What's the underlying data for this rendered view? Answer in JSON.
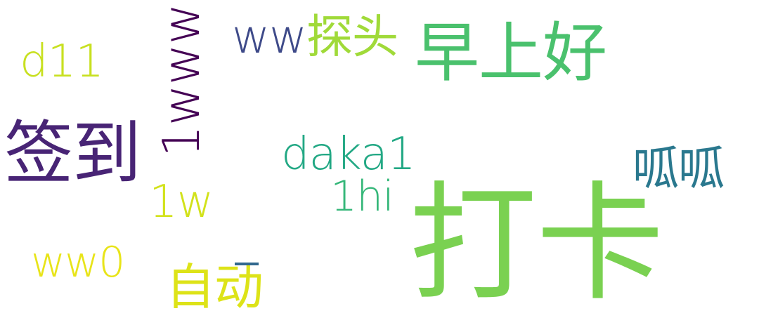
{
  "word_cloud": {
    "words": [
      {
        "id": "daka",
        "text": "打卡",
        "color": "#7ad151"
      },
      {
        "id": "zaoshanghao",
        "text": "早上好",
        "color": "#4ac16d"
      },
      {
        "id": "qiandao",
        "text": "签到",
        "color": "#482475"
      },
      {
        "id": "1www",
        "text": "1www",
        "color": "#440154"
      },
      {
        "id": "wwtantou_ww",
        "text": "ww",
        "color": "#3e4a89"
      },
      {
        "id": "wwtantou_tantou",
        "text": "探头",
        "color": "#a0da39"
      },
      {
        "id": "daka1",
        "text": "daka1",
        "color": "#22a884"
      },
      {
        "id": "guagua",
        "text": "呱呱",
        "color": "#2a788e"
      },
      {
        "id": "1hi",
        "text": "1hi",
        "color": "#35b779"
      },
      {
        "id": "1w",
        "text": "1w",
        "color": "#d2e21b"
      },
      {
        "id": "d11",
        "text": "d11",
        "color": "#c8e020"
      },
      {
        "id": "ww0",
        "text": "ww0",
        "color": "#e8e419"
      },
      {
        "id": "zidong",
        "text": "自动",
        "color": "#dde318"
      },
      {
        "id": "dash",
        "text": "—",
        "color": "#31688e"
      }
    ]
  }
}
